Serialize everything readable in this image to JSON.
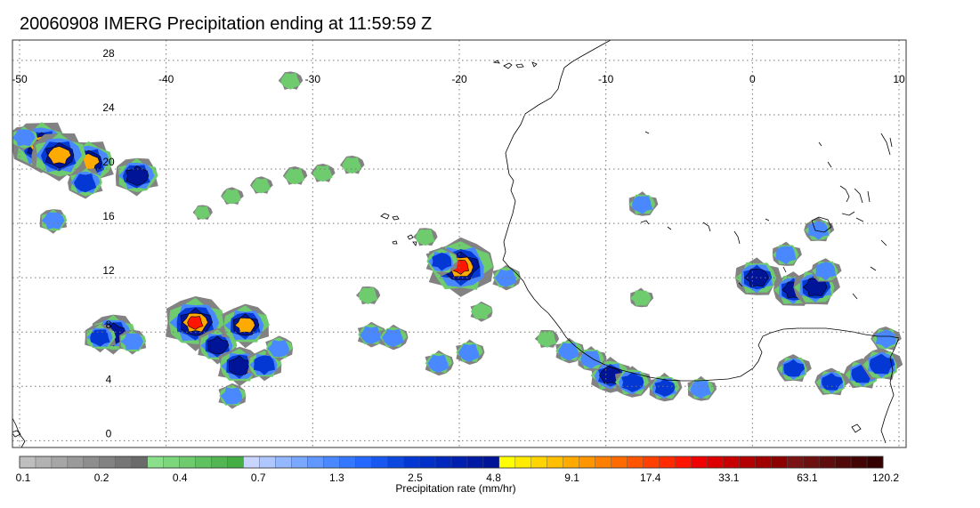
{
  "title": "20060908 IMERG Precipitation ending at 11:59:59 Z",
  "map": {
    "lon_range": [
      -50,
      10
    ],
    "lat_range": [
      -0.5,
      29.5
    ],
    "lon_ticks": [
      -50,
      -40,
      -30,
      -20,
      -10,
      0,
      10
    ],
    "lat_ticks": [
      0,
      4,
      8,
      12,
      16,
      20,
      24,
      28
    ],
    "lon_tick_labels": [
      "-50",
      "-40",
      "-30",
      "-20",
      "-10",
      "0",
      "10"
    ],
    "lat_tick_labels": [
      "0",
      "4",
      "8",
      "12",
      "16",
      "20",
      "24",
      "28"
    ],
    "grid": "dotted",
    "coastline_color": "#000000",
    "precip_cells": [
      {
        "lon": -45.3,
        "lat": 20.5,
        "peak": 15
      },
      {
        "lon": -45.5,
        "lat": 19.0,
        "peak": 4
      },
      {
        "lon": -48.5,
        "lat": 21.7,
        "peak": 25
      },
      {
        "lon": -47.3,
        "lat": 21.0,
        "peak": 20
      },
      {
        "lon": -49.7,
        "lat": 22.3,
        "peak": 2
      },
      {
        "lon": -42.0,
        "lat": 19.5,
        "peak": 8
      },
      {
        "lon": -47.7,
        "lat": 16.2,
        "peak": 2
      },
      {
        "lon": -43.6,
        "lat": 7.9,
        "peak": 9
      },
      {
        "lon": -44.5,
        "lat": 7.6,
        "peak": 3
      },
      {
        "lon": -42.3,
        "lat": 7.3,
        "peak": 2
      },
      {
        "lon": -38.0,
        "lat": 8.7,
        "peak": 30
      },
      {
        "lon": -36.5,
        "lat": 7.0,
        "peak": 6
      },
      {
        "lon": -34.6,
        "lat": 8.5,
        "peak": 12
      },
      {
        "lon": -35.0,
        "lat": 5.5,
        "peak": 8
      },
      {
        "lon": -33.3,
        "lat": 5.6,
        "peak": 4
      },
      {
        "lon": -35.5,
        "lat": 3.3,
        "peak": 2
      },
      {
        "lon": -32.3,
        "lat": 6.8,
        "peak": 2
      },
      {
        "lon": -19.9,
        "lat": 12.8,
        "peak": 40
      },
      {
        "lon": -21.2,
        "lat": 13.2,
        "peak": 3
      },
      {
        "lon": -18.5,
        "lat": 9.5,
        "peak": 1
      },
      {
        "lon": -16.8,
        "lat": 12.0,
        "peak": 2
      },
      {
        "lon": -26.0,
        "lat": 7.8,
        "peak": 2
      },
      {
        "lon": -24.5,
        "lat": 7.6,
        "peak": 2
      },
      {
        "lon": -21.4,
        "lat": 5.7,
        "peak": 2
      },
      {
        "lon": -19.3,
        "lat": 6.5,
        "peak": 2
      },
      {
        "lon": -12.5,
        "lat": 6.6,
        "peak": 2
      },
      {
        "lon": -9.7,
        "lat": 4.8,
        "peak": 6
      },
      {
        "lon": -8.2,
        "lat": 4.3,
        "peak": 4
      },
      {
        "lon": -6.0,
        "lat": 3.9,
        "peak": 3
      },
      {
        "lon": -3.5,
        "lat": 3.8,
        "peak": 2
      },
      {
        "lon": -11.0,
        "lat": 6.0,
        "peak": 2
      },
      {
        "lon": -7.5,
        "lat": 17.4,
        "peak": 2
      },
      {
        "lon": -7.6,
        "lat": 10.5,
        "peak": 1
      },
      {
        "lon": 2.3,
        "lat": 13.7,
        "peak": 2
      },
      {
        "lon": 0.3,
        "lat": 12.0,
        "peak": 8
      },
      {
        "lon": 2.8,
        "lat": 11.1,
        "peak": 6
      },
      {
        "lon": 4.3,
        "lat": 11.3,
        "peak": 8
      },
      {
        "lon": 5.0,
        "lat": 12.5,
        "peak": 2
      },
      {
        "lon": 4.5,
        "lat": 15.5,
        "peak": 2
      },
      {
        "lon": 2.8,
        "lat": 5.3,
        "peak": 3
      },
      {
        "lon": 5.4,
        "lat": 4.3,
        "peak": 3
      },
      {
        "lon": 7.5,
        "lat": 4.9,
        "peak": 4
      },
      {
        "lon": 8.8,
        "lat": 5.6,
        "peak": 5
      },
      {
        "lon": 9.1,
        "lat": 7.5,
        "peak": 2
      },
      {
        "lon": -35.5,
        "lat": 18.0,
        "peak": 0.8
      },
      {
        "lon": -33.5,
        "lat": 18.8,
        "peak": 0.8
      },
      {
        "lon": -31.2,
        "lat": 19.5,
        "peak": 1
      },
      {
        "lon": -29.3,
        "lat": 19.7,
        "peak": 1
      },
      {
        "lon": -27.3,
        "lat": 20.3,
        "peak": 1
      },
      {
        "lon": -31.5,
        "lat": 26.5,
        "peak": 1
      },
      {
        "lon": -37.5,
        "lat": 16.8,
        "peak": 0.5
      },
      {
        "lon": -22.3,
        "lat": 15.0,
        "peak": 1
      },
      {
        "lon": -26.2,
        "lat": 10.7,
        "peak": 1
      },
      {
        "lon": -14.0,
        "lat": 7.5,
        "peak": 1
      }
    ]
  },
  "colorbar": {
    "colors": [
      "#bebebe",
      "#b2b2b2",
      "#a6a6a6",
      "#9a9a9a",
      "#8e8e8e",
      "#828282",
      "#767676",
      "#6a6a6a",
      "#8ae08a",
      "#7cd67c",
      "#6ecb6e",
      "#60c160",
      "#52b752",
      "#44ad44",
      "#c8d6ff",
      "#aec8ff",
      "#94b8ff",
      "#7aa8ff",
      "#6098ff",
      "#4a88ff",
      "#3478ff",
      "#2468ff",
      "#1858f0",
      "#0c48e0",
      "#0438d4",
      "#0030c8",
      "#0028bc",
      "#0020b0",
      "#001aa4",
      "#001498",
      "#ffff00",
      "#ffea00",
      "#ffd400",
      "#ffbf00",
      "#ffaa00",
      "#ff9500",
      "#ff8000",
      "#ff6a00",
      "#ff5500",
      "#ff4000",
      "#ff2a00",
      "#ff1500",
      "#f00000",
      "#dc0000",
      "#c80000",
      "#b40000",
      "#a00000",
      "#8c0000",
      "#7a1414",
      "#6c1010",
      "#5e0c0c",
      "#500808",
      "#420404",
      "#340000"
    ],
    "tick_labels": [
      "0.1",
      "0.2",
      "0.4",
      "0.7",
      "1.3",
      "2.5",
      "4.8",
      "9.1",
      "17.4",
      "33.1",
      "63.1",
      "120.2"
    ],
    "title": "Precipitation rate (mm/hr)"
  }
}
